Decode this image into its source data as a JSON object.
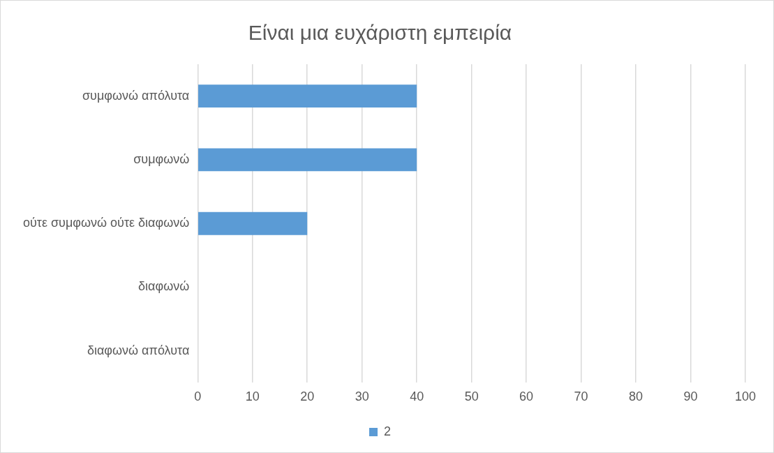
{
  "chart_data": {
    "type": "bar",
    "orientation": "horizontal",
    "title": "Είναι μια ευχάριστη εμπειρία",
    "categories": [
      "συμφωνώ απόλυτα",
      "συμφωνώ",
      "ούτε συμφωνώ ούτε διαφωνώ",
      "διαφωνώ",
      "διαφωνώ απόλυτα"
    ],
    "series": [
      {
        "name": "2",
        "color": "#5b9bd5",
        "values": [
          40,
          40,
          20,
          0,
          0
        ]
      }
    ],
    "xlim": [
      0,
      100
    ],
    "xticks": [
      0,
      10,
      20,
      30,
      40,
      50,
      60,
      70,
      80,
      90,
      100
    ],
    "grid": "x",
    "legend": "bottom"
  }
}
